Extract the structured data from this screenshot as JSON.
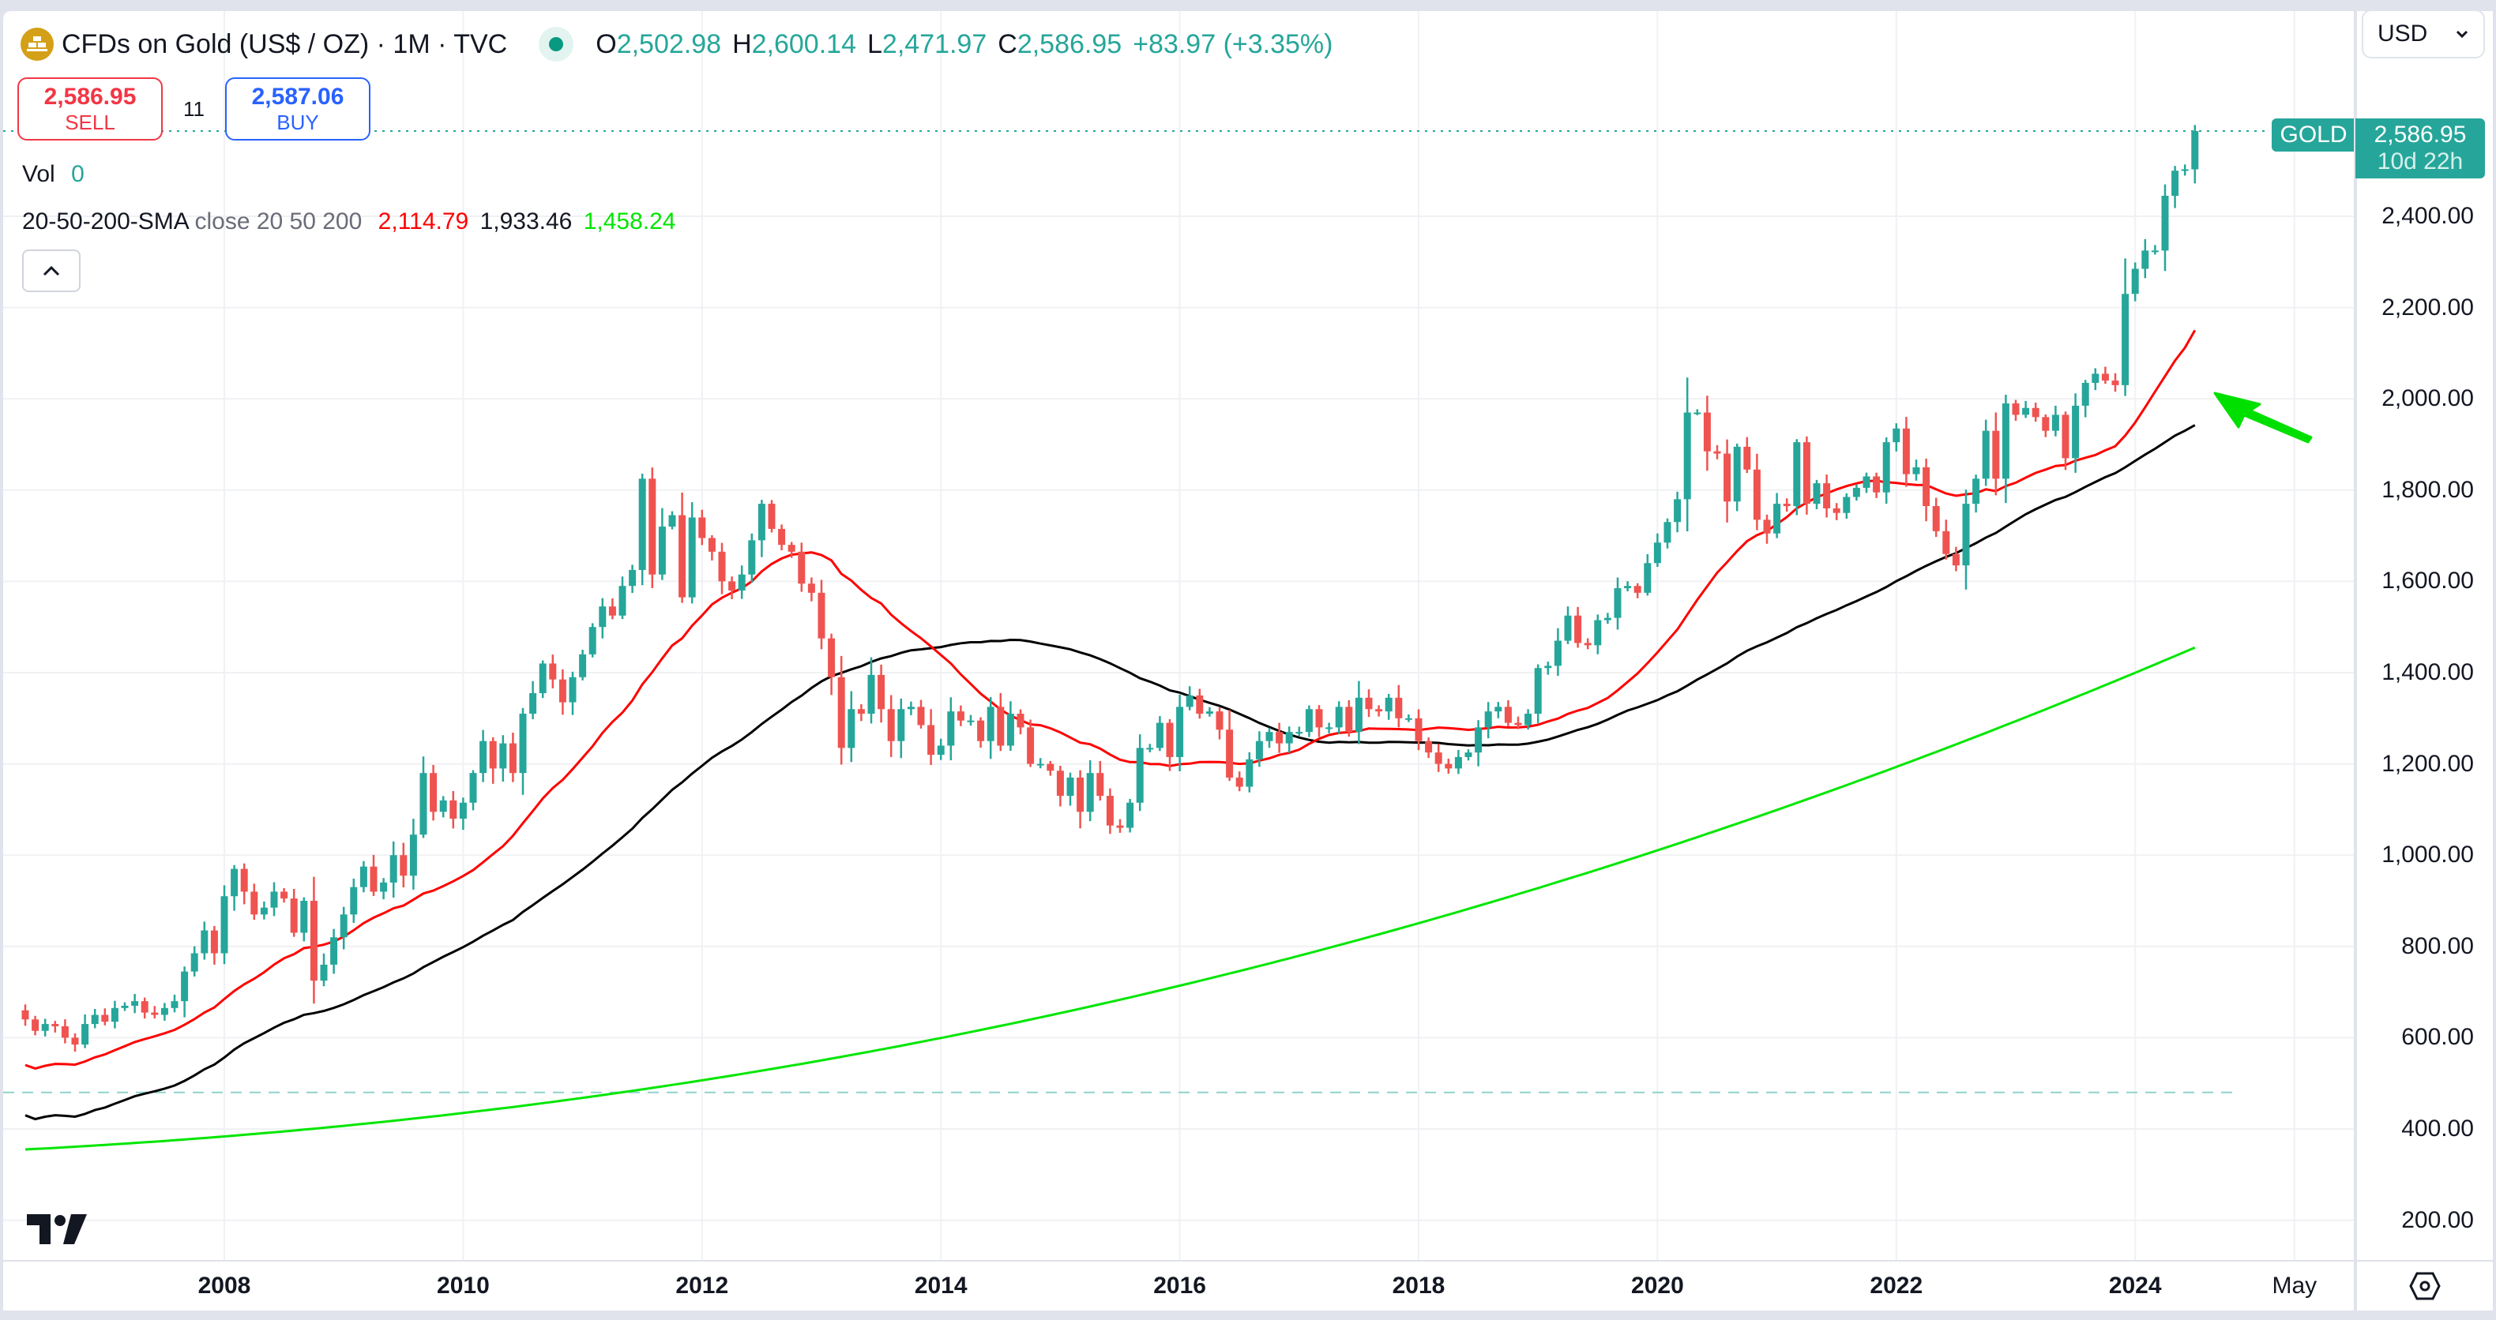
{
  "header": {
    "title": "CFDs on Gold (US$ / OZ) · 1M · TVC",
    "symbol_icon": "gold-bars-icon",
    "ohlc": {
      "o_label": "O",
      "o": "2,502.98",
      "h_label": "H",
      "h": "2,600.14",
      "l_label": "L",
      "l": "2,471.97",
      "c_label": "C",
      "c": "2,586.95",
      "change": "+83.97 (+3.35%)"
    }
  },
  "trade": {
    "sell_price": "2,586.95",
    "sell_label": "SELL",
    "spread": "11",
    "buy_price": "2,587.06",
    "buy_label": "BUY"
  },
  "indicators": {
    "vol_label": "Vol",
    "vol_value": "0",
    "sma_name": "20-50-200-SMA",
    "sma_params": "close 20 50 200",
    "sma20": "2,114.79",
    "sma50": "1,933.46",
    "sma200": "1,458.24"
  },
  "currency": {
    "selected": "USD"
  },
  "last_price": {
    "symbol": "GOLD",
    "value": "2,586.95",
    "countdown": "10d 22h"
  },
  "colors": {
    "up": "#26a69a",
    "down": "#ef5350",
    "sma20": "#ff0000",
    "sma50": "#000000",
    "sma200": "#00e600",
    "annotation_arrow": "#00e000"
  },
  "price_axis": [
    "2,400.00",
    "2,200.00",
    "2,000.00",
    "1,800.00",
    "1,600.00",
    "1,400.00",
    "1,200.00",
    "1,000.00",
    "800.00",
    "600.00",
    "400.00",
    "200.00"
  ],
  "time_axis": [
    "2008",
    "2010",
    "2012",
    "2014",
    "2016",
    "2018",
    "2020",
    "2022",
    "2024",
    "May"
  ],
  "chart_data": {
    "type": "candlestick",
    "title": "CFDs on Gold (US$ / OZ) · 1M · TVC",
    "xlabel": "",
    "ylabel": "USD",
    "ylim": [
      150,
      2700
    ],
    "x_ticks": [
      "2008",
      "2010",
      "2012",
      "2014",
      "2016",
      "2018",
      "2020",
      "2022",
      "2024",
      "May"
    ],
    "y_ticks": [
      200,
      400,
      600,
      800,
      1000,
      1200,
      1400,
      1600,
      1800,
      2000,
      2200,
      2400
    ],
    "start": "2006-05",
    "interval": "1M",
    "closes": [
      640,
      615,
      630,
      625,
      600,
      585,
      630,
      650,
      635,
      665,
      670,
      680,
      655,
      650,
      665,
      680,
      745,
      785,
      835,
      785,
      910,
      970,
      920,
      870,
      885,
      920,
      905,
      830,
      900,
      725,
      760,
      820,
      870,
      930,
      975,
      920,
      940,
      1000,
      955,
      1045,
      1180,
      1095,
      1120,
      1080,
      1115,
      1180,
      1250,
      1190,
      1245,
      1180,
      1310,
      1355,
      1420,
      1385,
      1335,
      1390,
      1440,
      1500,
      1545,
      1525,
      1590,
      1625,
      1825,
      1615,
      1720,
      1745,
      1565,
      1740,
      1695,
      1665,
      1600,
      1580,
      1615,
      1690,
      1770,
      1715,
      1680,
      1665,
      1595,
      1575,
      1475,
      1390,
      1235,
      1320,
      1310,
      1395,
      1320,
      1250,
      1320,
      1325,
      1285,
      1220,
      1240,
      1315,
      1295,
      1295,
      1250,
      1325,
      1240,
      1310,
      1280,
      1200,
      1200,
      1185,
      1130,
      1170,
      1095,
      1180,
      1130,
      1065,
      1060,
      1115,
      1235,
      1235,
      1290,
      1215,
      1325,
      1350,
      1310,
      1315,
      1275,
      1170,
      1150,
      1210,
      1250,
      1270,
      1245,
      1270,
      1270,
      1320,
      1280,
      1280,
      1325,
      1270,
      1345,
      1320,
      1315,
      1345,
      1300,
      1300,
      1250,
      1225,
      1200,
      1190,
      1215,
      1225,
      1280,
      1315,
      1325,
      1290,
      1285,
      1310,
      1410,
      1415,
      1470,
      1525,
      1465,
      1460,
      1515,
      1520,
      1585,
      1590,
      1575,
      1640,
      1685,
      1730,
      1780,
      1970,
      1970,
      1885,
      1880,
      1775,
      1895,
      1845,
      1735,
      1705,
      1770,
      1765,
      1905,
      1770,
      1815,
      1760,
      1750,
      1785,
      1805,
      1830,
      1795,
      1905,
      1935,
      1835,
      1850,
      1765,
      1710,
      1660,
      1635,
      1770,
      1825,
      1930,
      1825,
      1990,
      1965,
      1980,
      1960,
      1930,
      1965,
      1870,
      1985,
      2035,
      2055,
      2040,
      2030,
      2230,
      2285,
      2325,
      2325,
      2445,
      2500,
      2503,
      2587
    ],
    "series": [
      {
        "name": "SMA 20",
        "last": 2114.79,
        "color": "#ff0000"
      },
      {
        "name": "SMA 50",
        "last": 1933.46,
        "color": "#000000"
      },
      {
        "name": "SMA 200",
        "last": 1458.24,
        "color": "#00e600"
      }
    ],
    "last": {
      "open": 2502.98,
      "high": 2600.14,
      "low": 2471.97,
      "close": 2586.95,
      "change": 83.97,
      "change_pct": 3.35
    },
    "annotations": [
      "green arrow pointing up-left at breakout candle near 2,100",
      "dashed horizontal line near 480"
    ]
  }
}
